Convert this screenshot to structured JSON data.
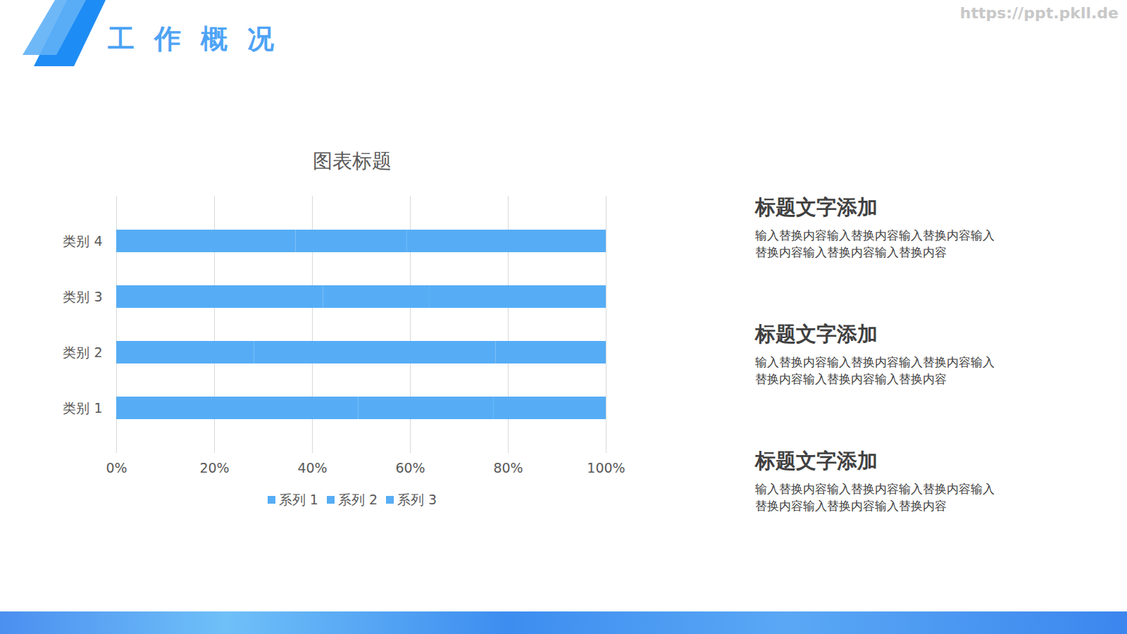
{
  "slide": {
    "header": "工作概况",
    "watermark": "https://ppt.pkll.de",
    "text_blocks": [
      {
        "title": "标题文字添加",
        "body": "输入替换内容输入替换内容输入替换内容输入替换内容输入替换内容输入替换内容"
      },
      {
        "title": "标题文字添加",
        "body": "输入替换内容输入替换内容输入替换内容输入替换内容输入替换内容输入替换内容"
      },
      {
        "title": "标题文字添加",
        "body": "输入替换内容输入替换内容输入替换内容输入替换内容输入替换内容输入替换内容"
      }
    ]
  },
  "chart_data": {
    "type": "bar",
    "title": "图表标题",
    "orientation": "horizontal",
    "stacked": true,
    "grid": true,
    "legend": "bottom",
    "categories": [
      "类别 1",
      "类别 2",
      "类别 3",
      "类别 4"
    ],
    "series": [
      {
        "name": "系列 1",
        "color": "#56adf5",
        "values": [
          49.4,
          28.1,
          42.2,
          36.6
        ]
      },
      {
        "name": "系列 2",
        "color": "#56adf5",
        "values": [
          27.6,
          49.4,
          21.7,
          22.8
        ]
      },
      {
        "name": "系列 3",
        "color": "#56adf5",
        "values": [
          23.0,
          22.5,
          36.1,
          40.6
        ]
      }
    ],
    "xlim": [
      0,
      100
    ],
    "xticks": [
      {
        "value": 0,
        "label": "0%"
      },
      {
        "value": 20,
        "label": "20%"
      },
      {
        "value": 40,
        "label": "40%"
      },
      {
        "value": 60,
        "label": "60%"
      },
      {
        "value": 80,
        "label": "80%"
      },
      {
        "value": 100,
        "label": "100%"
      }
    ]
  }
}
